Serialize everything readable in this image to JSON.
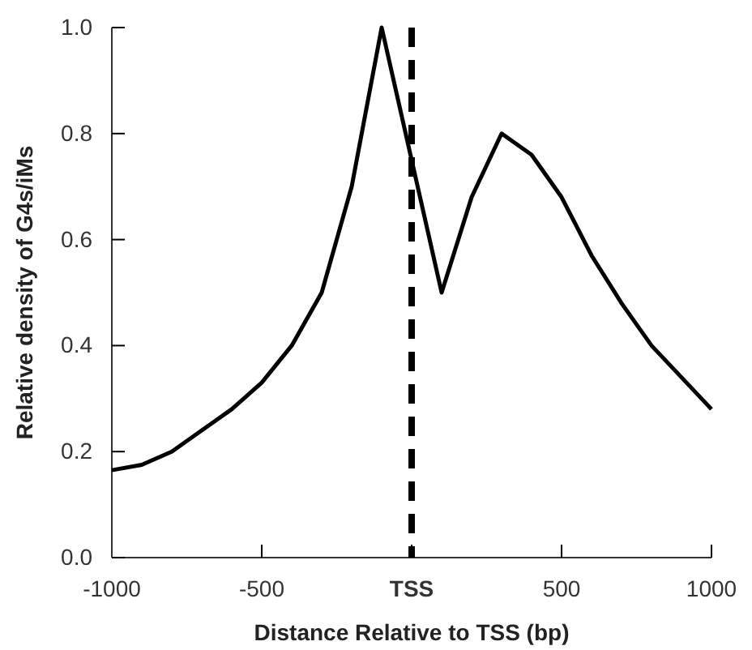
{
  "chart_data": {
    "type": "line",
    "xlabel": "Distance Relative to TSS (bp)",
    "ylabel": "Relative density of G4s/iMs",
    "x": [
      -1000,
      -900,
      -800,
      -700,
      -600,
      -500,
      -400,
      -300,
      -200,
      -100,
      0,
      100,
      200,
      300,
      400,
      500,
      600,
      700,
      800,
      900,
      1000
    ],
    "series": [
      {
        "color": "#000000",
        "values": [
          0.165,
          0.175,
          0.2,
          0.24,
          0.28,
          0.33,
          0.4,
          0.5,
          0.7,
          1.0,
          0.75,
          0.5,
          0.68,
          0.8,
          0.76,
          0.68,
          0.57,
          0.48,
          0.4,
          0.34,
          0.28
        ]
      }
    ],
    "xlim": [
      -1000,
      1000
    ],
    "xticks": [
      -1000,
      -500,
      {
        "value": 0,
        "label": "TSS"
      },
      500,
      1000
    ],
    "ylim": [
      0,
      1
    ],
    "yticks": [
      {
        "value": 0,
        "label": "0.0"
      },
      0.2,
      0.4,
      0.6,
      0.8,
      {
        "value": 1,
        "label": "1.0"
      }
    ],
    "ref_lines": [
      {
        "axis": "x",
        "value": 0,
        "color": "#000000",
        "line_style": "dashed"
      }
    ],
    "grid": false,
    "marker": "none",
    "line_style": "solid"
  }
}
